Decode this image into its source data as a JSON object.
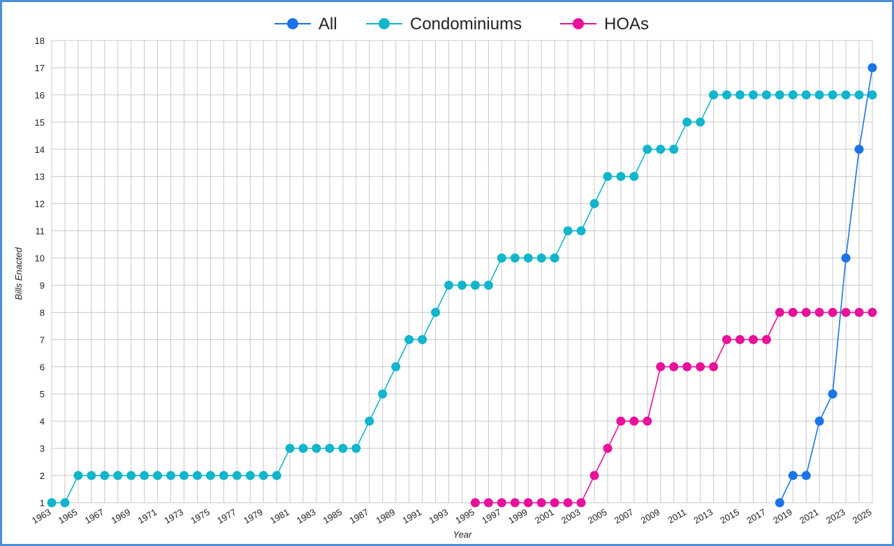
{
  "chart_data": {
    "type": "line",
    "title": "",
    "xlabel": "Year",
    "ylabel": "Bills Enacted",
    "xlim": [
      1963,
      2025
    ],
    "ylim": [
      1,
      18
    ],
    "yticks": [
      1,
      2,
      3,
      4,
      5,
      6,
      7,
      8,
      9,
      10,
      11,
      12,
      13,
      14,
      15,
      16,
      17,
      18
    ],
    "xtick_labels": [
      1963,
      1965,
      1967,
      1969,
      1971,
      1973,
      1975,
      1977,
      1979,
      1981,
      1983,
      1985,
      1987,
      1989,
      1991,
      1993,
      1995,
      1997,
      1999,
      2001,
      2003,
      2005,
      2007,
      2009,
      2011,
      2013,
      2015,
      2017,
      2019,
      2021,
      2023,
      2025
    ],
    "grid": true,
    "legend_position": "top-center",
    "series": [
      {
        "name": "All",
        "color": "#1a73e8",
        "x": [
          2018,
          2019,
          2020,
          2021,
          2022,
          2023,
          2024,
          2025
        ],
        "y": [
          1,
          2,
          2,
          4,
          5,
          10,
          14,
          17
        ]
      },
      {
        "name": "Condominiums",
        "color": "#12b5cb",
        "x": [
          1963,
          1964,
          1965,
          1966,
          1967,
          1968,
          1969,
          1970,
          1971,
          1972,
          1973,
          1974,
          1975,
          1976,
          1977,
          1978,
          1979,
          1980,
          1981,
          1982,
          1983,
          1984,
          1985,
          1986,
          1987,
          1988,
          1989,
          1990,
          1991,
          1992,
          1993,
          1994,
          1995,
          1996,
          1997,
          1998,
          1999,
          2000,
          2001,
          2002,
          2003,
          2004,
          2005,
          2006,
          2007,
          2008,
          2009,
          2010,
          2011,
          2012,
          2013,
          2014,
          2015,
          2016,
          2017,
          2018,
          2019,
          2020,
          2021,
          2022,
          2023,
          2024,
          2025
        ],
        "y": [
          1,
          1,
          2,
          2,
          2,
          2,
          2,
          2,
          2,
          2,
          2,
          2,
          2,
          2,
          2,
          2,
          2,
          2,
          3,
          3,
          3,
          3,
          3,
          3,
          4,
          5,
          6,
          7,
          7,
          8,
          9,
          9,
          9,
          9,
          10,
          10,
          10,
          10,
          10,
          11,
          11,
          12,
          13,
          13,
          13,
          14,
          14,
          14,
          15,
          15,
          16,
          16,
          16,
          16,
          16,
          16,
          16,
          16,
          16,
          16,
          16,
          16,
          16
        ]
      },
      {
        "name": "HOAs",
        "color": "#e8119a",
        "x": [
          1995,
          1996,
          1997,
          1998,
          1999,
          2000,
          2001,
          2002,
          2003,
          2004,
          2005,
          2006,
          2007,
          2008,
          2009,
          2010,
          2011,
          2012,
          2013,
          2014,
          2015,
          2016,
          2017,
          2018,
          2019,
          2020,
          2021,
          2022,
          2023,
          2024,
          2025
        ],
        "y": [
          1,
          1,
          1,
          1,
          1,
          1,
          1,
          1,
          1,
          2,
          3,
          4,
          4,
          4,
          6,
          6,
          6,
          6,
          6,
          7,
          7,
          7,
          7,
          8,
          8,
          8,
          8,
          8,
          8,
          8,
          8
        ]
      }
    ]
  }
}
